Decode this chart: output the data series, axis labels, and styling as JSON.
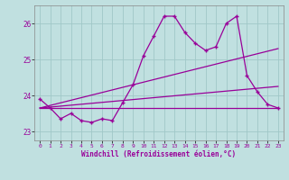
{
  "xlabel": "Windchill (Refroidissement éolien,°C)",
  "background_color": "#c0e0e0",
  "grid_color": "#a0c8c8",
  "line_color": "#990099",
  "ylim": [
    22.75,
    26.5
  ],
  "xlim": [
    -0.5,
    23.5
  ],
  "yticks": [
    23,
    24,
    25,
    26
  ],
  "xticks": [
    0,
    1,
    2,
    3,
    4,
    5,
    6,
    7,
    8,
    9,
    10,
    11,
    12,
    13,
    14,
    15,
    16,
    17,
    18,
    19,
    20,
    21,
    22,
    23
  ],
  "curve1_x": [
    0,
    1,
    2,
    3,
    4,
    5,
    6,
    7,
    8,
    9,
    10,
    11,
    12,
    13,
    14,
    15,
    16,
    17,
    18,
    19,
    20,
    21,
    22,
    23
  ],
  "curve1_y": [
    23.9,
    23.65,
    23.35,
    23.5,
    23.3,
    23.25,
    23.35,
    23.3,
    23.8,
    24.3,
    25.1,
    25.65,
    26.2,
    26.2,
    25.75,
    25.45,
    25.25,
    25.35,
    26.0,
    26.2,
    24.55,
    24.1,
    23.75,
    23.65
  ],
  "line1_x": [
    0,
    23
  ],
  "line1_y": [
    23.65,
    25.3
  ],
  "line2_x": [
    0,
    23
  ],
  "line2_y": [
    23.65,
    23.65
  ],
  "line3_x": [
    0,
    23
  ],
  "line3_y": [
    23.65,
    24.25
  ]
}
